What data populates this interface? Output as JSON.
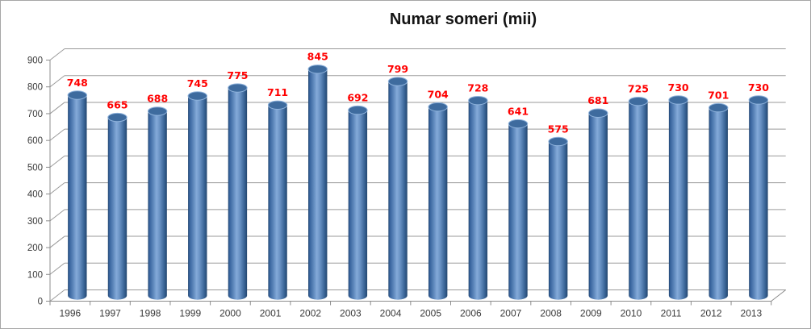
{
  "title": "Numar someri (mii)",
  "chart_data": {
    "type": "bar",
    "subtype": "3d-cylinder",
    "title": "Numar someri (mii)",
    "xlabel": "",
    "ylabel": "",
    "categories": [
      "1996",
      "1997",
      "1998",
      "1999",
      "2000",
      "2001",
      "2002",
      "2003",
      "2004",
      "2005",
      "2006",
      "2007",
      "2008",
      "2009",
      "2010",
      "2011",
      "2012",
      "2013"
    ],
    "values": [
      748,
      665,
      688,
      745,
      775,
      711,
      845,
      692,
      799,
      704,
      728,
      641,
      575,
      681,
      725,
      730,
      701,
      730
    ],
    "ylim": [
      0,
      900
    ],
    "yticks": [
      0,
      100,
      200,
      300,
      400,
      500,
      600,
      700,
      800,
      900
    ],
    "grid": true,
    "legend": false,
    "data_labels": true,
    "colors": {
      "value_label": "#ff0000",
      "axis_text": "#3b3b3b",
      "gridline": "#9a9a9a",
      "axis_line": "#8c8c8c",
      "bar_edge_dark": "#24476f",
      "bar_mid": "#5e88bc",
      "bar_highlight": "#84aad9",
      "bar_top": "#3e6b9e",
      "bar_top_rim": "#8fb3dc",
      "background": "#ffffff",
      "frame_border": "#a6a6a6",
      "title_color": "#141414"
    }
  }
}
